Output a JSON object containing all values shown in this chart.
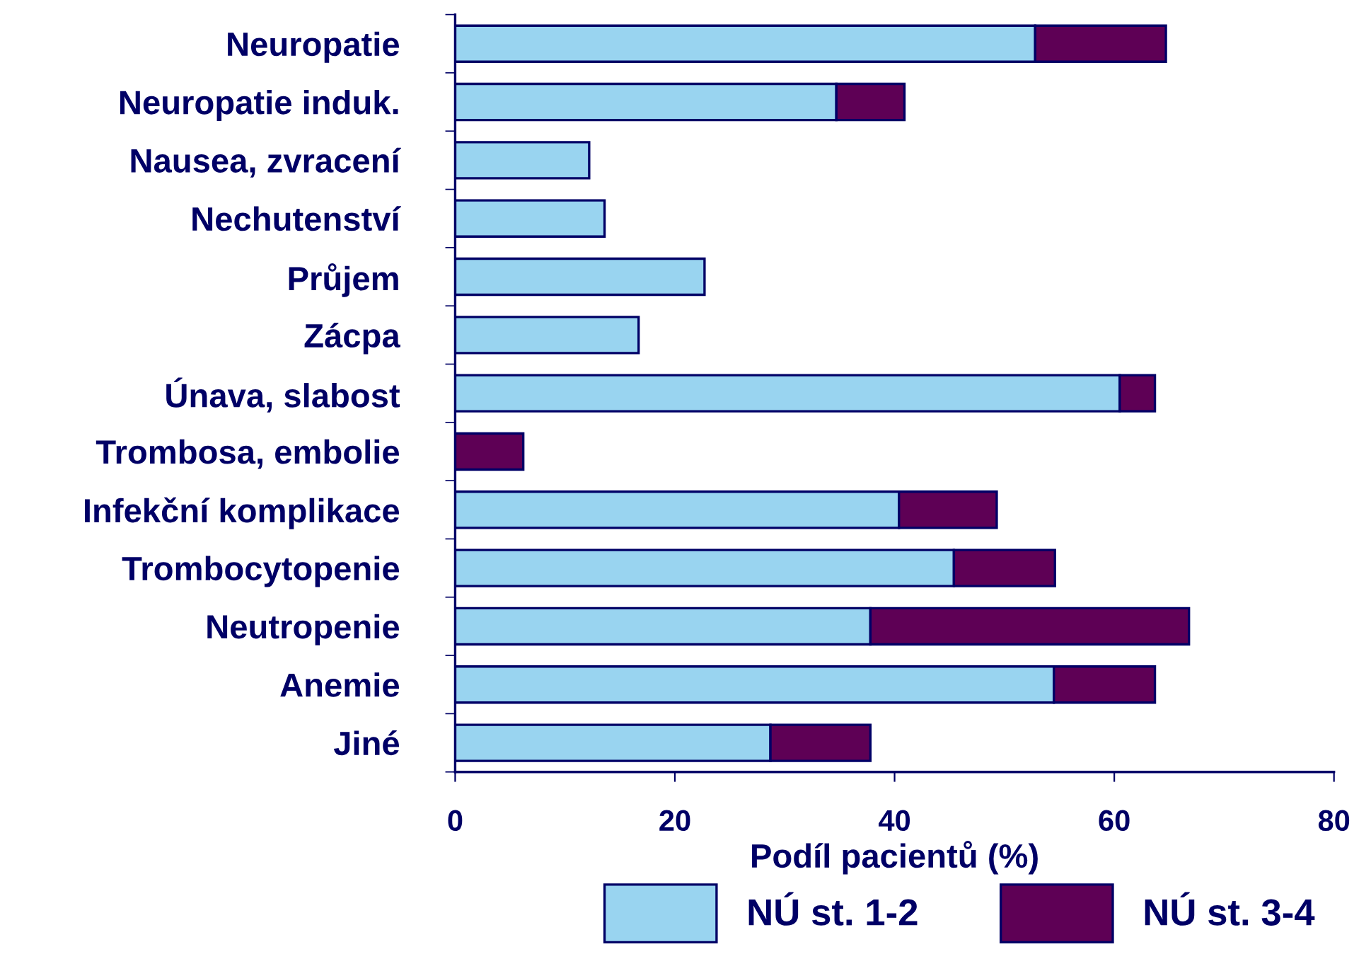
{
  "chart_data": {
    "type": "bar",
    "orientation": "horizontal",
    "stacked": true,
    "xlabel": "Podíl pacientů (%)",
    "categories": [
      "Neuropatie",
      "Neuropatie induk.",
      "Nausea, zvracení",
      "Nechutenství",
      "Průjem",
      "Zácpa",
      "Únava, slabost",
      "Trombosa, embolie",
      "Infekční komplikace",
      "Trombocytopenie",
      "Neutropenie",
      "Anemie",
      "Jiné"
    ],
    "series": [
      {
        "name": "NÚ st. 1-2",
        "color": "#99d4f0",
        "values": [
          52.8,
          34.7,
          12.2,
          13.6,
          22.7,
          16.7,
          60.5,
          null,
          40.4,
          45.4,
          37.8,
          54.5,
          28.7
        ]
      },
      {
        "name": "NÚ st. 3-4",
        "color": "#5e0055",
        "values": [
          11.9,
          6.2,
          null,
          null,
          null,
          null,
          3.2,
          6.2,
          8.9,
          9.2,
          29.0,
          9.2,
          9.1
        ]
      }
    ],
    "xlim": [
      0,
      80
    ],
    "xticks": [
      0,
      20,
      40,
      60,
      80
    ],
    "grid": false,
    "legend": "bottom"
  }
}
